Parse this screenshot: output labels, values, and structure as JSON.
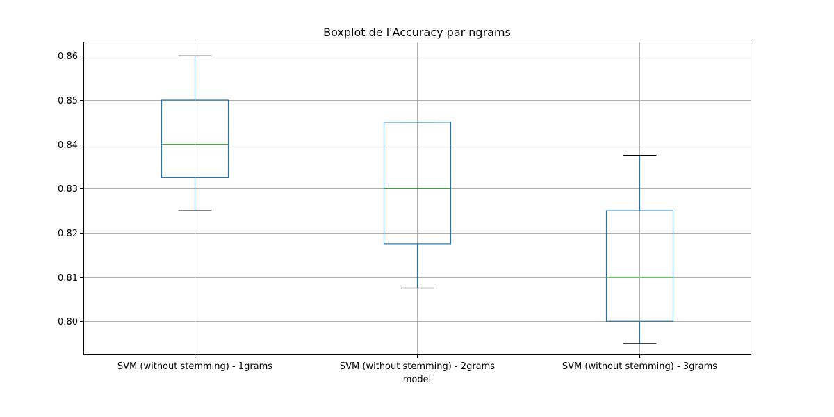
{
  "chart_data": {
    "type": "boxplot",
    "title": "Boxplot de l'Accuracy par ngrams",
    "xlabel": "model",
    "ylabel": "",
    "ylim": [
      0.7925,
      0.8632
    ],
    "yticks": [
      0.8,
      0.81,
      0.82,
      0.83,
      0.84,
      0.85,
      0.86
    ],
    "ytick_labels": [
      "0.80",
      "0.81",
      "0.82",
      "0.83",
      "0.84",
      "0.85",
      "0.86"
    ],
    "grid": true,
    "categories": [
      "SVM (without stemming) - 1grams",
      "SVM (without stemming) - 2grams",
      "SVM (without stemming) - 3grams"
    ],
    "boxes": [
      {
        "whislo": 0.825,
        "q1": 0.8325,
        "med": 0.84,
        "q3": 0.85,
        "whishi": 0.86
      },
      {
        "whislo": 0.8075,
        "q1": 0.8175,
        "med": 0.83,
        "q3": 0.845,
        "whishi": 0.845
      },
      {
        "whislo": 0.795,
        "q1": 0.8,
        "med": 0.81,
        "q3": 0.825,
        "whishi": 0.8375
      }
    ],
    "colors": {
      "box": "#1f77b4",
      "median": "#2ca02c",
      "cap": "#000000",
      "grid": "#b0b0b0"
    }
  }
}
